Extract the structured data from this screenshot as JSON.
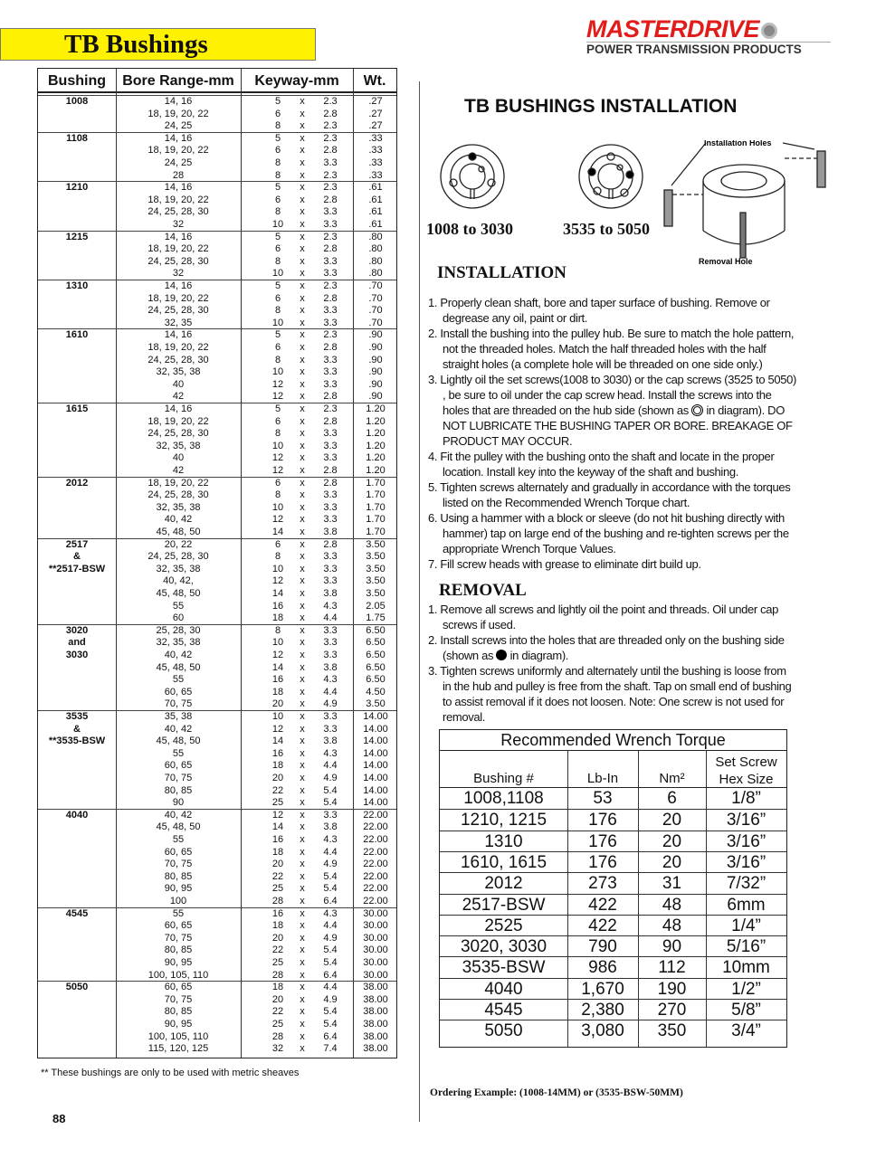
{
  "page_title": "TB  Bushings",
  "logo": {
    "brand": "MASTERDRIVE",
    "tagline": "POWER TRANSMISSION PRODUCTS"
  },
  "bushing_table": {
    "headers": [
      "Bushing",
      "Bore Range-mm",
      "Keyway-mm",
      "Wt."
    ],
    "groups": [
      {
        "label": [
          "1008"
        ],
        "rows": [
          [
            "14,  16",
            "5",
            "2.3",
            ".27"
          ],
          [
            "18, 19, 20, 22",
            "6",
            "2.8",
            ".27"
          ],
          [
            "24, 25",
            "8",
            "2.3",
            ".27"
          ]
        ]
      },
      {
        "label": [
          "1108"
        ],
        "rows": [
          [
            "14, 16",
            "5",
            "2.3",
            ".33"
          ],
          [
            "18, 19, 20, 22",
            "6",
            "2.8",
            ".33"
          ],
          [
            "24, 25",
            "8",
            "3.3",
            ".33"
          ],
          [
            "28",
            "8",
            "2.3",
            ".33"
          ]
        ]
      },
      {
        "label": [
          "1210"
        ],
        "rows": [
          [
            "14, 16",
            "5",
            "2.3",
            ".61"
          ],
          [
            "18, 19, 20, 22",
            "6",
            "2.8",
            ".61"
          ],
          [
            "24, 25, 28, 30",
            "8",
            "3.3",
            ".61"
          ],
          [
            "32",
            "10",
            "3.3",
            ".61"
          ]
        ]
      },
      {
        "label": [
          "1215"
        ],
        "rows": [
          [
            "14, 16",
            "5",
            "2.3",
            ".80"
          ],
          [
            "18, 19, 20, 22",
            "6",
            "2.8",
            ".80"
          ],
          [
            "24, 25, 28, 30",
            "8",
            "3.3",
            ".80"
          ],
          [
            "32",
            "10",
            "3.3",
            ".80"
          ]
        ]
      },
      {
        "label": [
          "1310"
        ],
        "rows": [
          [
            "14, 16",
            "5",
            "2.3",
            ".70"
          ],
          [
            "18, 19, 20, 22",
            "6",
            "2.8",
            ".70"
          ],
          [
            "24, 25, 28, 30",
            "8",
            "3.3",
            ".70"
          ],
          [
            "32, 35",
            "10",
            "3.3",
            ".70"
          ]
        ]
      },
      {
        "label": [
          "1610"
        ],
        "rows": [
          [
            "14, 16",
            "5",
            "2.3",
            ".90"
          ],
          [
            "18, 19, 20, 22",
            "6",
            "2.8",
            ".90"
          ],
          [
            "24, 25, 28, 30",
            "8",
            "3.3",
            ".90"
          ],
          [
            "32, 35, 38",
            "10",
            "3.3",
            ".90"
          ],
          [
            "40",
            "12",
            "3.3",
            ".90"
          ],
          [
            "42",
            "12",
            "2.8",
            ".90"
          ]
        ]
      },
      {
        "label": [
          "1615"
        ],
        "rows": [
          [
            "14, 16",
            "5",
            "2.3",
            "1.20"
          ],
          [
            "18, 19, 20, 22",
            "6",
            "2.8",
            "1.20"
          ],
          [
            "24, 25, 28, 30",
            "8",
            "3.3",
            "1.20"
          ],
          [
            "32, 35, 38",
            "10",
            "3.3",
            "1.20"
          ],
          [
            "40",
            "12",
            "3.3",
            "1.20"
          ],
          [
            "42",
            "12",
            "2.8",
            "1.20"
          ]
        ]
      },
      {
        "label": [
          "2012"
        ],
        "rows": [
          [
            "18, 19, 20, 22",
            "6",
            "2.8",
            "1.70"
          ],
          [
            "24, 25, 28, 30",
            "8",
            "3.3",
            "1.70"
          ],
          [
            "32, 35, 38",
            "10",
            "3.3",
            "1.70"
          ],
          [
            "40, 42",
            "12",
            "3.3",
            "1.70"
          ],
          [
            "45, 48, 50",
            "14",
            "3.8",
            "1.70"
          ]
        ]
      },
      {
        "label": [
          "2517",
          "&",
          "**2517-BSW"
        ],
        "rows": [
          [
            "20, 22",
            "6",
            "2.8",
            "3.50"
          ],
          [
            "24, 25, 28, 30",
            "8",
            "3.3",
            "3.50"
          ],
          [
            "32, 35, 38",
            "10",
            "3.3",
            "3.50"
          ],
          [
            "40, 42,",
            "12",
            "3.3",
            "3.50"
          ],
          [
            "45, 48, 50",
            "14",
            "3.8",
            "3.50"
          ],
          [
            "55",
            "16",
            "4.3",
            "2.05"
          ],
          [
            "60",
            "18",
            "4.4",
            "1.75"
          ]
        ]
      },
      {
        "label": [
          "3020",
          "and",
          "3030"
        ],
        "rows": [
          [
            "25, 28, 30",
            "8",
            "3.3",
            "6.50"
          ],
          [
            "32, 35, 38",
            "10",
            "3.3",
            "6.50"
          ],
          [
            "40, 42",
            "12",
            "3.3",
            "6.50"
          ],
          [
            "45, 48, 50",
            "14",
            "3.8",
            "6.50"
          ],
          [
            "55",
            "16",
            "4.3",
            "6.50"
          ],
          [
            "60, 65",
            "18",
            "4.4",
            "4.50"
          ],
          [
            "70, 75",
            "20",
            "4.9",
            "3.50"
          ]
        ]
      },
      {
        "label": [
          "3535",
          "&",
          "**3535-BSW"
        ],
        "rows": [
          [
            "35, 38",
            "10",
            "3.3",
            "14.00"
          ],
          [
            "40, 42",
            "12",
            "3.3",
            "14.00"
          ],
          [
            "45, 48, 50",
            "14",
            "3.8",
            "14.00"
          ],
          [
            "55",
            "16",
            "4.3",
            "14.00"
          ],
          [
            "60, 65",
            "18",
            "4.4",
            "14.00"
          ],
          [
            "70, 75",
            "20",
            "4.9",
            "14.00"
          ],
          [
            "80, 85",
            "22",
            "5.4",
            "14.00"
          ],
          [
            "90",
            "25",
            "5.4",
            "14.00"
          ]
        ]
      },
      {
        "label": [
          "4040"
        ],
        "rows": [
          [
            "40, 42",
            "12",
            "3.3",
            "22.00"
          ],
          [
            "45, 48, 50",
            "14",
            "3.8",
            "22.00"
          ],
          [
            "55",
            "16",
            "4.3",
            "22.00"
          ],
          [
            "60, 65",
            "18",
            "4.4",
            "22.00"
          ],
          [
            "70, 75",
            "20",
            "4.9",
            "22.00"
          ],
          [
            "80, 85",
            "22",
            "5.4",
            "22.00"
          ],
          [
            "90, 95",
            "25",
            "5.4",
            "22.00"
          ],
          [
            "100",
            "28",
            "6.4",
            "22.00"
          ]
        ]
      },
      {
        "label": [
          "4545"
        ],
        "rows": [
          [
            "55",
            "16",
            "4.3",
            "30.00"
          ],
          [
            "60, 65",
            "18",
            "4.4",
            "30.00"
          ],
          [
            "70, 75",
            "20",
            "4.9",
            "30.00"
          ],
          [
            "80, 85",
            "22",
            "5.4",
            "30.00"
          ],
          [
            "90, 95",
            "25",
            "5.4",
            "30.00"
          ],
          [
            "100, 105, 110",
            "28",
            "6.4",
            "30.00"
          ]
        ]
      },
      {
        "label": [
          "5050"
        ],
        "rows": [
          [
            "60, 65",
            "18",
            "4.4",
            "38.00"
          ],
          [
            "70, 75",
            "20",
            "4.9",
            "38.00"
          ],
          [
            "80, 85",
            "22",
            "5.4",
            "38.00"
          ],
          [
            "90, 95",
            "25",
            "5.4",
            "38.00"
          ],
          [
            "100, 105, 110",
            "28",
            "6.4",
            "38.00"
          ],
          [
            "115, 120, 125",
            "32",
            "7.4",
            "38.00"
          ]
        ]
      }
    ],
    "separator": "x"
  },
  "footnote": "**  These bushings are only to be used with metric sheaves",
  "page_number": "88",
  "install": {
    "title": "TB BUSHINGS INSTALLATION",
    "diagram": {
      "label_a": "1008 to 3030",
      "label_b": "3535 to 5050",
      "installation_holes": "Installation Holes",
      "removal_hole": "Removal Hole"
    },
    "installation_heading": "INSTALLATION",
    "steps": [
      "1. Properly clean shaft, bore and taper surface of bushing.  Remove or degrease any oil, paint or dirt.",
      "2. Install the bushing into the pulley hub.  Be sure to match the hole pattern, not the threaded holes.  Match the half threaded holes with the half straight holes (a complete  hole will be threaded on one side only.)",
      "4. Fit the pulley with the bushing onto the shaft and locate in the proper location.  Install key into the keyway of the shaft and bushing.",
      "5. Tighten screws alternately and gradually in accordance with the torques listed on the Recommended Wrench Torque chart.",
      "6. Using a hammer with a block or sleeve (do not hit bushing directly with hammer) tap on large end of the bushing and re-tighten screws per the appropriate Wrench Torque Values.",
      "7. Fill screw heads with grease to eliminate dirt build up."
    ],
    "step3_a": "3. Lightly oil the set screws(1008 to 3030) or the cap screws (3525 to 5050) , be sure to oil under the cap screw head.  Install the screws into the holes that are threaded on the hub side (shown as ",
    "step3_b": " in diagram).  DO NOT LUBRICATE THE BUSHING TAPER OR BORE.  BREAKAGE OF PRODUCT MAY OCCUR.",
    "removal_heading": "REMOVAL",
    "removal_1": "1. Remove all screws and lightly oil the point and threads.  Oil under cap screws if used.",
    "removal_2a": "2. Install screws into the holes that are threaded only on the bushing side (shown as ",
    "removal_2b": " in diagram).",
    "removal_3": "3. Tighten screws uniformly and alternately until the bushing is loose from in the hub and pulley is free from the shaft.  Tap on small end of bushing to assist removal if it does not loosen.  Note:  One screw is not used for removal."
  },
  "torque": {
    "title": "Recommended Wrench Torque",
    "headers": [
      "Bushing #",
      "Lb-In",
      "Nm²",
      "Set Screw Hex Size"
    ],
    "rows": [
      [
        "1008,1108",
        "53",
        "6",
        "1/8”"
      ],
      [
        "1210, 1215",
        "176",
        "20",
        "3/16”"
      ],
      [
        "1310",
        "176",
        "20",
        "3/16”"
      ],
      [
        "1610, 1615",
        "176",
        "20",
        "3/16”"
      ],
      [
        "2012",
        "273",
        "31",
        "7/32”"
      ],
      [
        "2517-BSW",
        "422",
        "48",
        "6mm"
      ],
      [
        "2525",
        "422",
        "48",
        "1/4”"
      ],
      [
        "3020, 3030",
        "790",
        "90",
        "5/16”"
      ],
      [
        "3535-BSW",
        "986",
        "112",
        "10mm"
      ],
      [
        "4040",
        "1,670",
        "190",
        "1/2”"
      ],
      [
        "4545",
        "2,380",
        "270",
        "5/8”"
      ],
      [
        "5050",
        "3,080",
        "350",
        "3/4”"
      ]
    ]
  },
  "ordering_example": "Ordering Example:  (1008-14MM)  or (3535-BSW-50MM)",
  "colors": {
    "title_bg": "#fff200",
    "brand_red": "#e21b1b"
  }
}
